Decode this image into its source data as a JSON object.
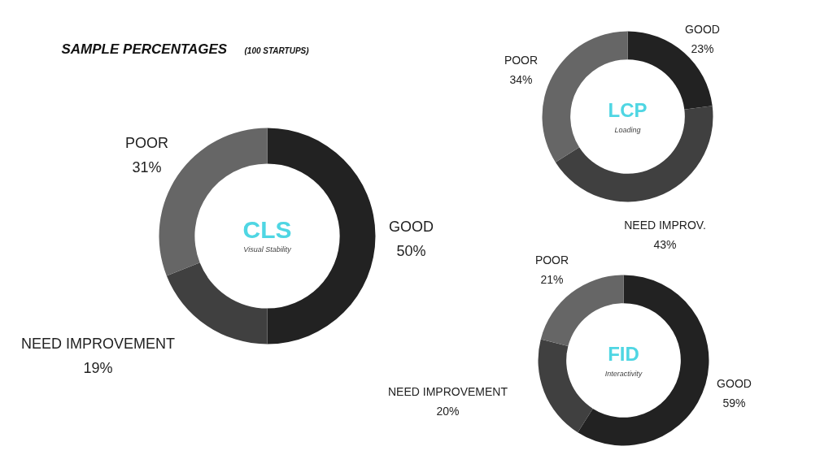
{
  "chart_data": [
    {
      "type": "donut",
      "title": "SAMPLE PERCENTAGES",
      "subtitle": "(100 STARTUPS)",
      "categories": [
        "GOOD",
        "NEED IMPROVEMENT",
        "POOR"
      ],
      "values": [
        50,
        19,
        31
      ],
      "colors": [
        "#222222",
        "#404040",
        "#666666"
      ],
      "value_labels": [
        "50%",
        "19%",
        "31%"
      ],
      "annotations": [
        "CLS",
        "Visual Stability"
      ]
    },
    {
      "type": "donut",
      "categories": [
        "GOOD",
        "NEED IMPROV.",
        "POOR"
      ],
      "values": [
        23,
        43,
        34
      ],
      "colors": [
        "#222222",
        "#404040",
        "#666666"
      ],
      "value_labels": [
        "23%",
        "43%",
        "34%"
      ],
      "annotations": [
        "LCP",
        "Loading"
      ]
    },
    {
      "type": "donut",
      "categories": [
        "GOOD",
        "NEED IMPROVEMENT",
        "POOR"
      ],
      "values": [
        59,
        20,
        21
      ],
      "colors": [
        "#222222",
        "#404040",
        "#666666"
      ],
      "value_labels": [
        "59%",
        "20%",
        "21%"
      ],
      "annotations": [
        "FID",
        "Interactivity"
      ]
    }
  ]
}
